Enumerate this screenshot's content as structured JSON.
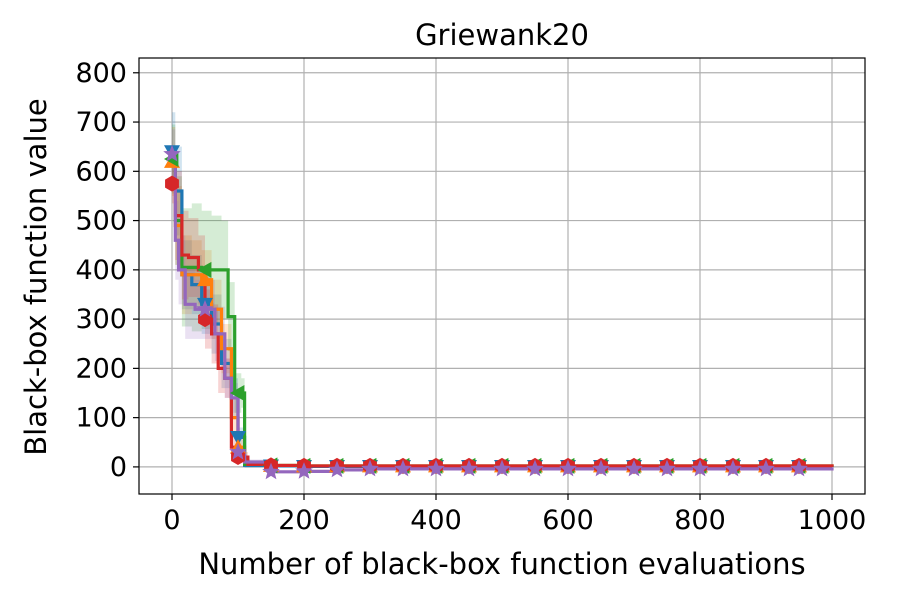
{
  "chart_data": {
    "type": "line",
    "title": "Griewank20",
    "xlabel": "Number of black-box function evaluations",
    "ylabel": "Black-box function value",
    "xlim": [
      -50,
      1050
    ],
    "ylim": [
      -55,
      830
    ],
    "xticks": [
      0,
      200,
      400,
      600,
      800,
      1000
    ],
    "yticks": [
      0,
      100,
      200,
      300,
      400,
      500,
      600,
      700,
      800
    ],
    "grid": true,
    "legend": "none",
    "series": [
      {
        "color": "#1f77b4",
        "marker": "triangle-down",
        "x": [
          0,
          5,
          15,
          30,
          45,
          60,
          75,
          90,
          100,
          110,
          150,
          200,
          1000
        ],
        "y": [
          640,
          560,
          390,
          370,
          330,
          290,
          210,
          140,
          60,
          3,
          2,
          1,
          0
        ],
        "band": [
          80,
          90,
          70,
          60,
          60,
          60,
          50,
          40,
          20,
          5,
          3,
          2,
          1
        ]
      },
      {
        "color": "#ff7f0e",
        "marker": "triangle-up",
        "x": [
          0,
          5,
          15,
          30,
          45,
          60,
          75,
          90,
          100,
          110,
          150,
          200,
          1000
        ],
        "y": [
          620,
          490,
          390,
          390,
          380,
          320,
          240,
          100,
          40,
          5,
          3,
          2,
          0
        ],
        "band": [
          70,
          80,
          80,
          70,
          60,
          60,
          50,
          40,
          20,
          5,
          3,
          2,
          1
        ]
      },
      {
        "color": "#2ca02c",
        "marker": "triangle-left",
        "x": [
          0,
          5,
          15,
          30,
          45,
          60,
          75,
          85,
          95,
          105,
          110,
          150,
          200,
          1000
        ],
        "y": [
          625,
          500,
          405,
          405,
          400,
          400,
          400,
          305,
          150,
          150,
          5,
          3,
          2,
          0
        ],
        "band": [
          70,
          90,
          120,
          130,
          120,
          110,
          100,
          70,
          40,
          30,
          5,
          3,
          2,
          1
        ]
      },
      {
        "color": "#d62728",
        "marker": "hexagon",
        "x": [
          0,
          5,
          15,
          25,
          40,
          50,
          60,
          70,
          80,
          90,
          100,
          115,
          150,
          200,
          1000
        ],
        "y": [
          575,
          510,
          430,
          425,
          400,
          300,
          270,
          200,
          180,
          40,
          20,
          5,
          3,
          2,
          0
        ],
        "band": [
          40,
          90,
          90,
          80,
          70,
          60,
          60,
          50,
          40,
          20,
          10,
          4,
          3,
          2,
          1
        ]
      },
      {
        "color": "#9467bd",
        "marker": "star",
        "x": [
          0,
          5,
          10,
          20,
          35,
          50,
          65,
          80,
          90,
          100,
          110,
          150,
          200,
          250,
          300,
          1000
        ],
        "y": [
          635,
          460,
          400,
          330,
          320,
          320,
          270,
          180,
          140,
          30,
          10,
          -10,
          -9,
          -6,
          -4,
          -1
        ],
        "band": [
          50,
          80,
          70,
          70,
          60,
          60,
          55,
          40,
          30,
          10,
          5,
          3,
          2,
          2,
          1,
          1
        ]
      }
    ],
    "marker_x": [
      0,
      50,
      100,
      150,
      200,
      250,
      300,
      350,
      400,
      450,
      500,
      550,
      600,
      650,
      700,
      750,
      800,
      850,
      900,
      950
    ]
  }
}
